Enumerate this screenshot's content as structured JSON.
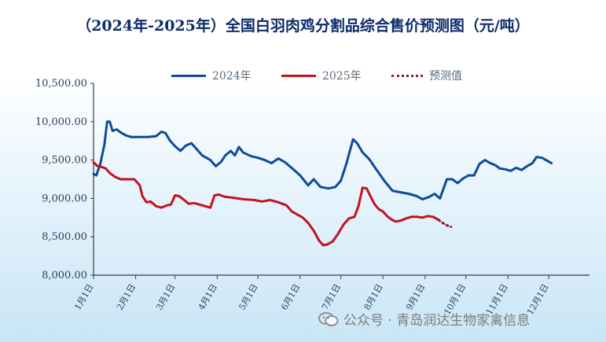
{
  "chart_data": {
    "type": "line",
    "title": "（2024年-2025年）全国白羽肉鸡分割品综合售价预测图（元/吨）",
    "ylim": [
      8000,
      10500
    ],
    "yticks": [
      "10,500.00",
      "10,000.00",
      "9,500.00",
      "9,000.00",
      "8,500.00",
      "8,000.00"
    ],
    "ytick_values": [
      10500,
      10000,
      9500,
      9000,
      8500,
      8000
    ],
    "xticks": [
      "1月1日",
      "2月1日",
      "3月1日",
      "4月1日",
      "5月1日",
      "6月1日",
      "7月1日",
      "8月1日",
      "9月1日",
      "10月1日",
      "11月1日",
      "12月1日"
    ],
    "xlim": [
      0,
      365
    ],
    "legend_position": "top",
    "grid": false,
    "series": [
      {
        "name": "2024年",
        "color": "#0e4a99",
        "style": "solid",
        "points": [
          [
            0,
            9320
          ],
          [
            2,
            9300
          ],
          [
            5,
            9450
          ],
          [
            8,
            9700
          ],
          [
            10,
            10000
          ],
          [
            12,
            10000
          ],
          [
            14,
            9880
          ],
          [
            17,
            9900
          ],
          [
            20,
            9860
          ],
          [
            24,
            9820
          ],
          [
            28,
            9800
          ],
          [
            34,
            9800
          ],
          [
            40,
            9800
          ],
          [
            46,
            9810
          ],
          [
            50,
            9870
          ],
          [
            53,
            9850
          ],
          [
            56,
            9760
          ],
          [
            60,
            9680
          ],
          [
            64,
            9620
          ],
          [
            68,
            9690
          ],
          [
            72,
            9720
          ],
          [
            76,
            9640
          ],
          [
            80,
            9560
          ],
          [
            86,
            9500
          ],
          [
            90,
            9420
          ],
          [
            94,
            9480
          ],
          [
            97,
            9560
          ],
          [
            101,
            9620
          ],
          [
            104,
            9560
          ],
          [
            107,
            9670
          ],
          [
            110,
            9600
          ],
          [
            116,
            9550
          ],
          [
            121,
            9530
          ],
          [
            126,
            9500
          ],
          [
            131,
            9460
          ],
          [
            136,
            9520
          ],
          [
            141,
            9470
          ],
          [
            147,
            9380
          ],
          [
            152,
            9300
          ],
          [
            158,
            9170
          ],
          [
            162,
            9250
          ],
          [
            167,
            9150
          ],
          [
            173,
            9130
          ],
          [
            178,
            9150
          ],
          [
            182,
            9230
          ],
          [
            186,
            9450
          ],
          [
            189,
            9640
          ],
          [
            191,
            9770
          ],
          [
            194,
            9720
          ],
          [
            198,
            9600
          ],
          [
            203,
            9510
          ],
          [
            208,
            9380
          ],
          [
            214,
            9230
          ],
          [
            220,
            9100
          ],
          [
            226,
            9080
          ],
          [
            232,
            9060
          ],
          [
            238,
            9030
          ],
          [
            242,
            8990
          ],
          [
            247,
            9020
          ],
          [
            251,
            9060
          ],
          [
            255,
            9000
          ],
          [
            258,
            9150
          ],
          [
            260,
            9250
          ],
          [
            264,
            9250
          ],
          [
            268,
            9200
          ],
          [
            272,
            9260
          ],
          [
            276,
            9300
          ],
          [
            280,
            9300
          ],
          [
            284,
            9450
          ],
          [
            288,
            9500
          ],
          [
            292,
            9460
          ],
          [
            296,
            9430
          ],
          [
            299,
            9390
          ],
          [
            303,
            9380
          ],
          [
            307,
            9360
          ],
          [
            311,
            9400
          ],
          [
            315,
            9370
          ],
          [
            319,
            9420
          ],
          [
            323,
            9460
          ],
          [
            326,
            9540
          ],
          [
            330,
            9530
          ],
          [
            334,
            9490
          ],
          [
            337,
            9460
          ]
        ]
      },
      {
        "name": "2025年",
        "color": "#c0141c",
        "style": "solid",
        "points": [
          [
            0,
            9470
          ],
          [
            3,
            9420
          ],
          [
            6,
            9410
          ],
          [
            9,
            9390
          ],
          [
            12,
            9330
          ],
          [
            16,
            9280
          ],
          [
            20,
            9250
          ],
          [
            25,
            9250
          ],
          [
            30,
            9250
          ],
          [
            34,
            9170
          ],
          [
            36,
            9030
          ],
          [
            39,
            8950
          ],
          [
            42,
            8960
          ],
          [
            46,
            8900
          ],
          [
            50,
            8880
          ],
          [
            54,
            8910
          ],
          [
            57,
            8920
          ],
          [
            60,
            9040
          ],
          [
            63,
            9030
          ],
          [
            66,
            8990
          ],
          [
            70,
            8930
          ],
          [
            74,
            8940
          ],
          [
            78,
            8920
          ],
          [
            82,
            8900
          ],
          [
            86,
            8880
          ],
          [
            89,
            9040
          ],
          [
            92,
            9050
          ],
          [
            97,
            9020
          ],
          [
            102,
            9010
          ],
          [
            110,
            8990
          ],
          [
            118,
            8980
          ],
          [
            124,
            8960
          ],
          [
            130,
            8980
          ],
          [
            136,
            8950
          ],
          [
            142,
            8910
          ],
          [
            146,
            8830
          ],
          [
            150,
            8790
          ],
          [
            154,
            8750
          ],
          [
            158,
            8680
          ],
          [
            162,
            8580
          ],
          [
            166,
            8450
          ],
          [
            169,
            8390
          ],
          [
            172,
            8400
          ],
          [
            176,
            8440
          ],
          [
            180,
            8540
          ],
          [
            184,
            8660
          ],
          [
            188,
            8740
          ],
          [
            192,
            8760
          ],
          [
            195,
            8900
          ],
          [
            198,
            9140
          ],
          [
            201,
            9130
          ],
          [
            204,
            9020
          ],
          [
            207,
            8920
          ],
          [
            210,
            8860
          ],
          [
            213,
            8830
          ],
          [
            216,
            8770
          ],
          [
            219,
            8730
          ],
          [
            222,
            8700
          ],
          [
            226,
            8710
          ],
          [
            230,
            8740
          ],
          [
            234,
            8760
          ],
          [
            238,
            8760
          ],
          [
            242,
            8750
          ],
          [
            246,
            8770
          ],
          [
            250,
            8760
          ],
          [
            254,
            8720
          ]
        ]
      },
      {
        "name": "预测值",
        "color": "#8a1d2a",
        "style": "dotted",
        "points": [
          [
            254,
            8720
          ],
          [
            257,
            8680
          ],
          [
            260,
            8650
          ],
          [
            263,
            8630
          ]
        ]
      }
    ]
  },
  "watermark": {
    "text": "公众号 · 青岛润达生物家禽信息",
    "icon": "wechat-icon"
  }
}
